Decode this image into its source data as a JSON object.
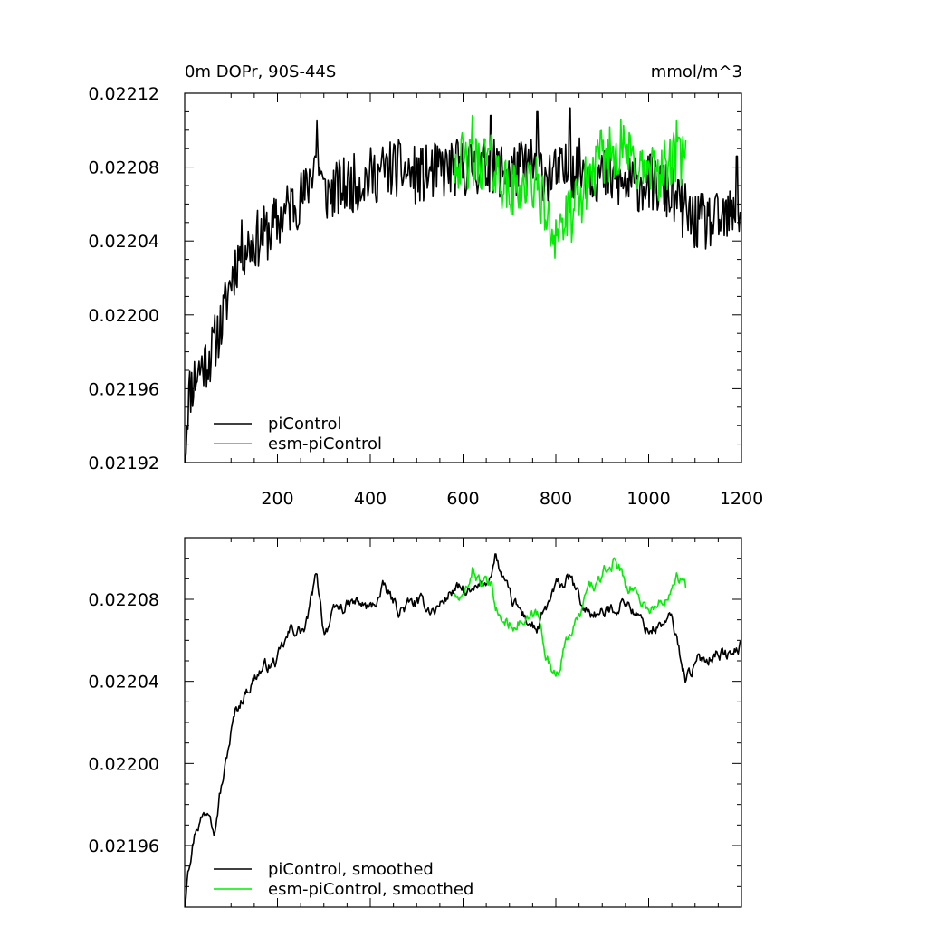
{
  "chart_data": [
    {
      "type": "line",
      "title": "0m DOPr, 90S-44S",
      "units": "mmol/m^3",
      "xlim": [
        0,
        1200
      ],
      "ylim": [
        0.02192,
        0.02212
      ],
      "xticks": [
        200,
        400,
        600,
        800,
        1000,
        1200
      ],
      "yticks": [
        0.02192,
        0.02196,
        0.022,
        0.02204,
        0.02208,
        0.02212
      ],
      "ytick_labels": [
        "0.02192",
        "0.02196",
        "0.02200",
        "0.02204",
        "0.02208",
        "0.02212"
      ],
      "xtick_labels": [
        "200",
        "400",
        "600",
        "800",
        "1000",
        "1200"
      ],
      "legend": {
        "position": "bottom-left",
        "entries": [
          "piControl",
          "esm-piControl"
        ]
      },
      "series": [
        {
          "name": "piControl",
          "color": "#000000",
          "keypoints": [
            [
              1,
              0.02192
            ],
            [
              6,
              0.02195
            ],
            [
              12,
              0.02196
            ],
            [
              20,
              0.021965
            ],
            [
              30,
              0.02197
            ],
            [
              45,
              0.021975
            ],
            [
              60,
              0.02198
            ],
            [
              70,
              0.02199
            ],
            [
              80,
              0.021995
            ],
            [
              100,
              0.02202
            ],
            [
              120,
              0.022035
            ],
            [
              150,
              0.02204
            ],
            [
              180,
              0.022045
            ],
            [
              200,
              0.02205
            ],
            [
              230,
              0.02206
            ],
            [
              260,
              0.022065
            ],
            [
              285,
              0.02209
            ],
            [
              300,
              0.022065
            ],
            [
              350,
              0.02207
            ],
            [
              400,
              0.022075
            ],
            [
              450,
              0.02208
            ],
            [
              500,
              0.022075
            ],
            [
              550,
              0.022078
            ],
            [
              600,
              0.02208
            ],
            [
              650,
              0.02208
            ],
            [
              700,
              0.022078
            ],
            [
              750,
              0.02208
            ],
            [
              800,
              0.022075
            ],
            [
              850,
              0.02208
            ],
            [
              900,
              0.022075
            ],
            [
              950,
              0.02207
            ],
            [
              1000,
              0.022072
            ],
            [
              1050,
              0.022065
            ],
            [
              1080,
              0.022055
            ],
            [
              1100,
              0.02205
            ],
            [
              1150,
              0.02205
            ],
            [
              1200,
              0.022055
            ]
          ],
          "noise": 1.6e-05,
          "spikes": [
            [
              285,
              0.022105
            ],
            [
              660,
              0.022108
            ],
            [
              760,
              0.02211
            ],
            [
              830,
              0.022112
            ],
            [
              1190,
              0.022086
            ]
          ]
        },
        {
          "name": "esm-piControl",
          "color": "#00ee00",
          "keypoints": [
            [
              580,
              0.022085
            ],
            [
              620,
              0.02208
            ],
            [
              650,
              0.022085
            ],
            [
              680,
              0.022075
            ],
            [
              700,
              0.022065
            ],
            [
              720,
              0.02207
            ],
            [
              760,
              0.02207
            ],
            [
              790,
              0.022045
            ],
            [
              820,
              0.02205
            ],
            [
              850,
              0.02206
            ],
            [
              870,
              0.022075
            ],
            [
              900,
              0.022085
            ],
            [
              930,
              0.02209
            ],
            [
              960,
              0.022085
            ],
            [
              1000,
              0.022075
            ],
            [
              1040,
              0.02208
            ],
            [
              1060,
              0.022085
            ],
            [
              1080,
              0.022082
            ]
          ],
          "noise": 1.6e-05,
          "spikes": [
            [
              620,
              0.022108
            ],
            [
              940,
              0.022106
            ],
            [
              1060,
              0.022105
            ]
          ]
        }
      ]
    },
    {
      "type": "line",
      "title": "",
      "xlim": [
        0,
        1200
      ],
      "ylim": [
        0.02193,
        0.02211
      ],
      "xticks": [
        200,
        400,
        600,
        800,
        1000,
        1200
      ],
      "yticks": [
        0.02196,
        0.022,
        0.02204,
        0.02208
      ],
      "ytick_labels": [
        "0.02196",
        "0.02200",
        "0.02204",
        "0.02208"
      ],
      "legend": {
        "position": "bottom-left",
        "entries": [
          "piControl, smoothed",
          "esm-piControl, smoothed"
        ]
      },
      "series": [
        {
          "name": "piControl, smoothed",
          "color": "#000000",
          "keypoints": [
            [
              1,
              0.02193
            ],
            [
              6,
              0.02195
            ],
            [
              15,
              0.02196
            ],
            [
              25,
              0.02197
            ],
            [
              40,
              0.021975
            ],
            [
              55,
              0.02198
            ],
            [
              65,
              0.02197
            ],
            [
              75,
              0.021985
            ],
            [
              85,
              0.021995
            ],
            [
              100,
              0.022015
            ],
            [
              110,
              0.022025
            ],
            [
              130,
              0.022035
            ],
            [
              160,
              0.022045
            ],
            [
              200,
              0.02205
            ],
            [
              230,
              0.022065
            ],
            [
              260,
              0.022065
            ],
            [
              285,
              0.022092
            ],
            [
              300,
              0.022065
            ],
            [
              330,
              0.022075
            ],
            [
              370,
              0.022078
            ],
            [
              400,
              0.022075
            ],
            [
              430,
              0.022085
            ],
            [
              460,
              0.022075
            ],
            [
              500,
              0.022078
            ],
            [
              540,
              0.022075
            ],
            [
              580,
              0.022085
            ],
            [
              620,
              0.022082
            ],
            [
              650,
              0.022088
            ],
            [
              670,
              0.0221
            ],
            [
              700,
              0.02208
            ],
            [
              730,
              0.022072
            ],
            [
              760,
              0.022065
            ],
            [
              800,
              0.022085
            ],
            [
              830,
              0.02209
            ],
            [
              860,
              0.022075
            ],
            [
              900,
              0.022072
            ],
            [
              950,
              0.02208
            ],
            [
              980,
              0.02207
            ],
            [
              1000,
              0.022065
            ],
            [
              1050,
              0.02207
            ],
            [
              1080,
              0.022042
            ],
            [
              1110,
              0.02205
            ],
            [
              1150,
              0.022055
            ],
            [
              1180,
              0.022052
            ],
            [
              1200,
              0.022058
            ]
          ],
          "noise": 4.5e-06,
          "spikes": [
            [
              670,
              0.022102
            ]
          ]
        },
        {
          "name": "esm-piControl, smoothed",
          "color": "#00ee00",
          "keypoints": [
            [
              580,
              0.022082
            ],
            [
              600,
              0.022078
            ],
            [
              620,
              0.022095
            ],
            [
              640,
              0.022088
            ],
            [
              660,
              0.022085
            ],
            [
              680,
              0.02207
            ],
            [
              700,
              0.022068
            ],
            [
              720,
              0.02207
            ],
            [
              740,
              0.022068
            ],
            [
              760,
              0.022072
            ],
            [
              790,
              0.022045
            ],
            [
              810,
              0.022048
            ],
            [
              830,
              0.022065
            ],
            [
              850,
              0.02207
            ],
            [
              870,
              0.022085
            ],
            [
              900,
              0.02209
            ],
            [
              930,
              0.0221
            ],
            [
              950,
              0.022088
            ],
            [
              970,
              0.022085
            ],
            [
              1000,
              0.022075
            ],
            [
              1030,
              0.022078
            ],
            [
              1060,
              0.022095
            ],
            [
              1080,
              0.022085
            ]
          ],
          "noise": 4.5e-06,
          "spikes": []
        }
      ]
    }
  ]
}
